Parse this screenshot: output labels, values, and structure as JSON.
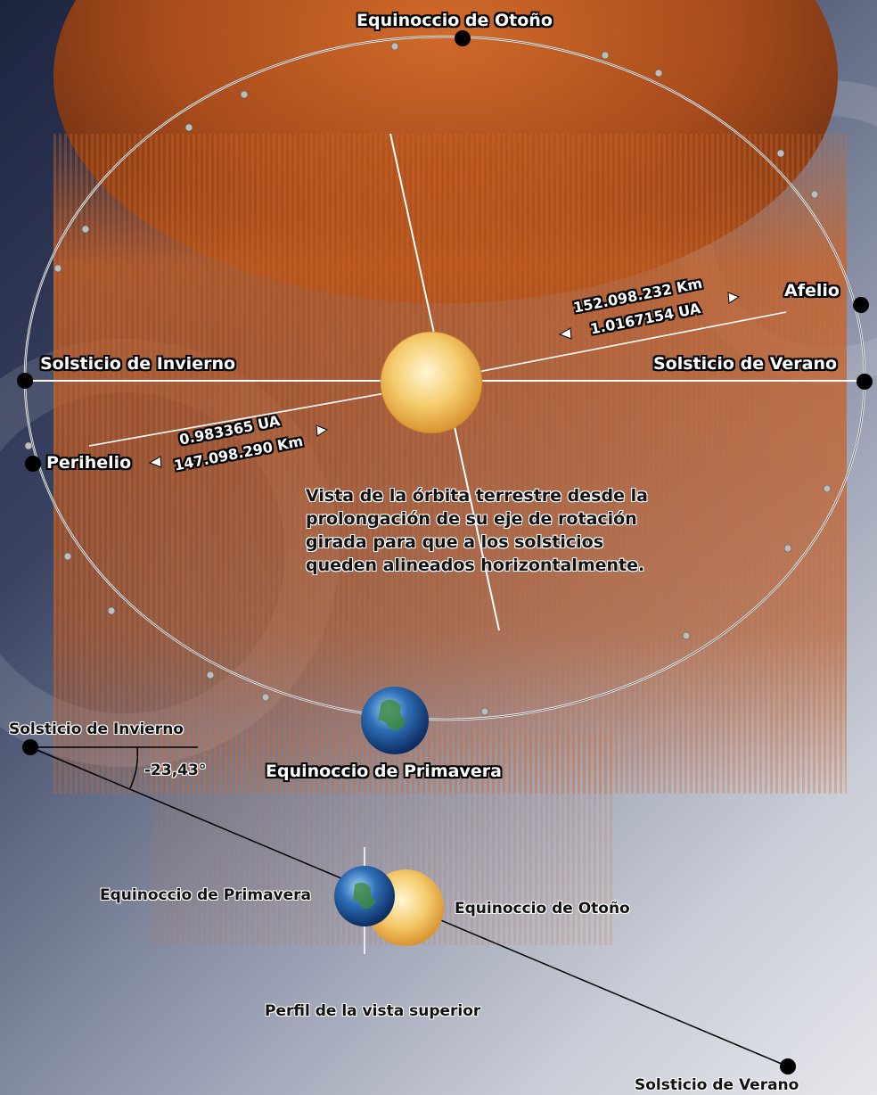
{
  "colors": {
    "background_dark": "#1d2440",
    "background_light": "#e6e7ec",
    "planet_orange": "#c35a1c",
    "sun_yellow": "#f6d178",
    "earth_blue": "#2f6fb6",
    "orbit_line": "#ffffff"
  },
  "icons": [
    "sun-icon",
    "earth-icon",
    "mars-backdrop"
  ],
  "top_view": {
    "autumn_equinox": "Equinoccio de Otoño",
    "aphelion": "Afelio",
    "aphelion_km": "152.098.232 Km",
    "aphelion_au": "1.0167154 UA",
    "winter_solstice": "Solsticio de Invierno",
    "summer_solstice": "Solsticio de Verano",
    "perihelion": "Perihelio",
    "perihelion_au": "0.983365 UA",
    "perihelion_km": "147.098.290 Km",
    "spring_equinox": "Equinoccio de Primavera",
    "note_lines": [
      "Vista de la órbita terrestre desde la",
      "prolongación de su eje de rotación",
      "girada para que a los solsticios",
      "queden alineados horizontalmente."
    ]
  },
  "profile_view": {
    "winter_solstice": "Solsticio de Invierno",
    "tilt_angle": "-23,43°",
    "spring_equinox": "Equinoccio de Primavera",
    "autumn_equinox": "Equinoccio de Otoño",
    "caption": "Perfil de la vista superior",
    "summer_solstice": "Solsticio de Verano"
  }
}
